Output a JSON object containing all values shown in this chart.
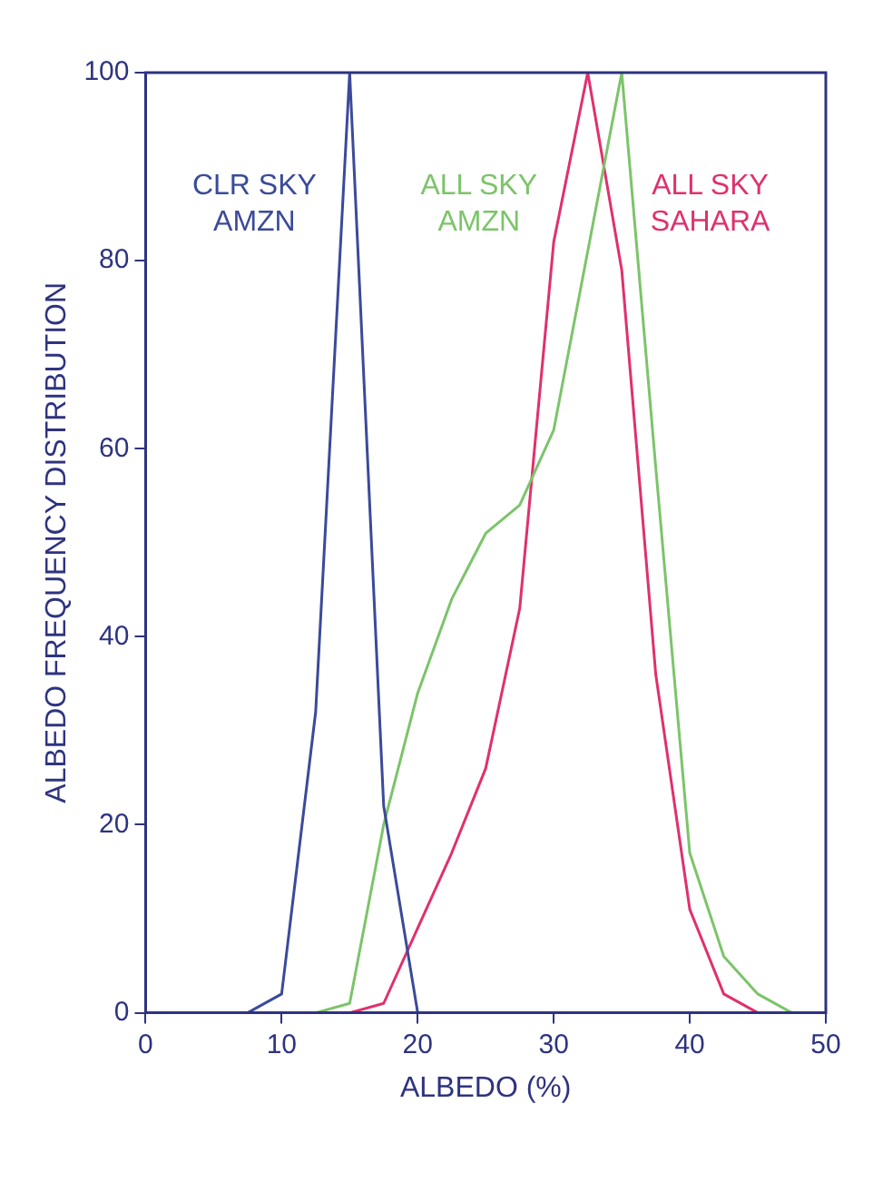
{
  "chart_data": {
    "type": "line",
    "xlabel": "ALBEDO (%)",
    "ylabel": "ALBEDO FREQUENCY DISTRIBUTION",
    "xlim": [
      0,
      50
    ],
    "xticks": [
      0,
      10,
      20,
      30,
      40,
      50
    ],
    "ylim": [
      0,
      100
    ],
    "yticks": [
      0,
      20,
      40,
      60,
      80,
      100
    ],
    "grid": false,
    "legend": false,
    "marker": "none",
    "line_style": "solid",
    "series": [
      {
        "name": "CLR SKY AMZN",
        "color": "#3b4a9a",
        "x": [
          7.5,
          10,
          12.5,
          15,
          17.5,
          20,
          22.5
        ],
        "values": [
          0,
          2,
          32,
          100,
          22,
          0,
          0
        ]
      },
      {
        "name": "ALL SKY AMZN",
        "color": "#7cc46a",
        "x": [
          12.5,
          15,
          17.5,
          20,
          22.5,
          25,
          27.5,
          30,
          32.5,
          35,
          37.5,
          40,
          42.5,
          45,
          47.5
        ],
        "values": [
          0,
          1,
          20,
          34,
          44,
          51,
          54,
          62,
          81,
          100,
          58,
          17,
          6,
          2,
          0
        ]
      },
      {
        "name": "ALL SKY SAHARA",
        "color": "#e0306e",
        "x": [
          15,
          17.5,
          20,
          22.5,
          25,
          27.5,
          30,
          32.5,
          35,
          37.5,
          40,
          42.5,
          45,
          47.5
        ],
        "values": [
          0,
          1,
          9,
          17,
          26,
          43,
          82,
          100,
          79,
          36,
          11,
          2,
          0,
          0
        ]
      }
    ]
  }
}
